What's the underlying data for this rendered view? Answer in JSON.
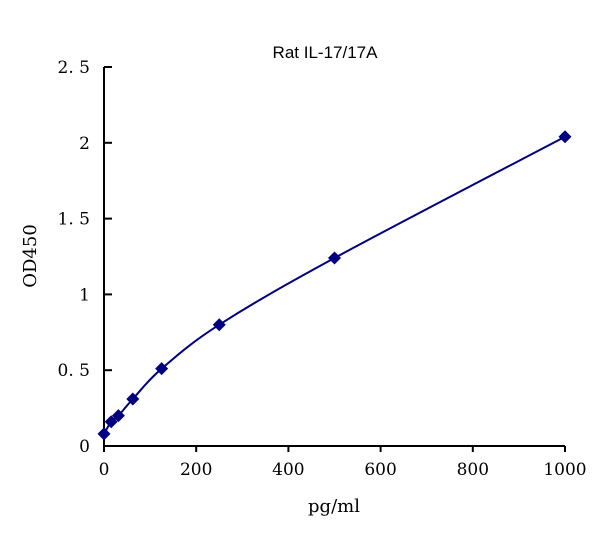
{
  "chart_data": {
    "type": "scatter",
    "title": "Rat IL-17/17A",
    "xlabel": "pg/ml",
    "ylabel": "OD450",
    "xlim": [
      0,
      1000
    ],
    "ylim": [
      0,
      2.5
    ],
    "xticks": [
      0,
      200,
      400,
      600,
      800,
      1000
    ],
    "yticks": [
      0,
      0.5,
      1,
      1.5,
      2,
      2.5
    ],
    "ytick_labels": [
      "0",
      "0. 5",
      "1",
      "1. 5",
      "2",
      "2. 5"
    ],
    "grid": false,
    "series": [
      {
        "x": [
          0,
          15.6,
          31.25,
          62.5,
          125,
          250,
          500,
          1000
        ],
        "y": [
          0.08,
          0.16,
          0.2,
          0.31,
          0.51,
          0.8,
          1.24,
          2.04
        ],
        "marker": "diamond",
        "trendline": "smooth curve",
        "color": "#000080"
      }
    ]
  }
}
